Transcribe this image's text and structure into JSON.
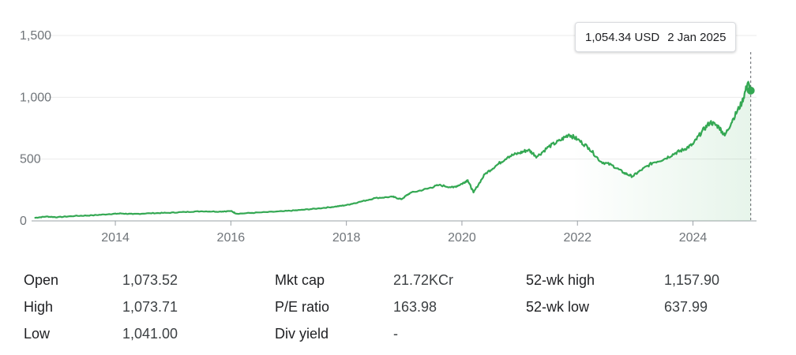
{
  "chart_data": {
    "type": "line",
    "y_ticks": [
      "1,500",
      "1,000",
      "500",
      "0"
    ],
    "y_tick_values": [
      1500,
      1000,
      500,
      0
    ],
    "x_ticks": [
      "2014",
      "2016",
      "2018",
      "2020",
      "2022",
      "2024"
    ],
    "x_tick_values": [
      2014,
      2016,
      2018,
      2020,
      2022,
      2024
    ],
    "ylim": [
      0,
      1500
    ],
    "xlim": [
      2012.55,
      2025.1
    ],
    "grid": true,
    "line_color": "#34a853",
    "series": [
      {
        "x": [
          2012.6,
          2012.8,
          2013.0,
          2013.3,
          2013.6,
          2013.9,
          2014.1,
          2014.3,
          2014.6,
          2014.9,
          2015.2,
          2015.5,
          2015.8,
          2016.0,
          2016.1,
          2016.5,
          2016.9,
          2017.2,
          2017.5,
          2017.8,
          2018.0,
          2018.2,
          2018.5,
          2018.8,
          2018.95,
          2019.1,
          2019.4,
          2019.6,
          2019.85,
          2020.0,
          2020.1,
          2020.2,
          2020.4,
          2020.6,
          2020.8,
          2021.0,
          2021.15,
          2021.3,
          2021.5,
          2021.7,
          2021.85,
          2022.0,
          2022.2,
          2022.4,
          2022.6,
          2022.8,
          2022.95,
          2023.1,
          2023.3,
          2023.5,
          2023.7,
          2023.85,
          2024.0,
          2024.15,
          2024.3,
          2024.45,
          2024.55,
          2024.7,
          2024.85,
          2024.95,
          2025.0
        ],
        "values": [
          25,
          35,
          30,
          40,
          45,
          55,
          60,
          55,
          62,
          65,
          72,
          78,
          75,
          80,
          58,
          68,
          78,
          88,
          100,
          115,
          128,
          150,
          185,
          195,
          175,
          225,
          260,
          290,
          270,
          300,
          330,
          230,
          380,
          450,
          520,
          550,
          575,
          520,
          600,
          650,
          700,
          660,
          590,
          480,
          450,
          390,
          360,
          410,
          470,
          500,
          550,
          580,
          620,
          720,
          800,
          760,
          690,
          830,
          960,
          1120,
          1054.34
        ]
      }
    ]
  },
  "tooltip": {
    "value": "1,054.34 USD",
    "date": "2 Jan 2025"
  },
  "stats": {
    "open_label": "Open",
    "open": "1,073.52",
    "high_label": "High",
    "high": "1,073.71",
    "low_label": "Low",
    "low": "1,041.00",
    "mktcap_label": "Mkt cap",
    "mktcap": "21.72KCr",
    "pe_label": "P/E ratio",
    "pe": "163.98",
    "div_label": "Div yield",
    "div": "-",
    "wkhigh_label": "52-wk high",
    "wkhigh": "1,157.90",
    "wklow_label": "52-wk low",
    "wklow": "637.99"
  }
}
